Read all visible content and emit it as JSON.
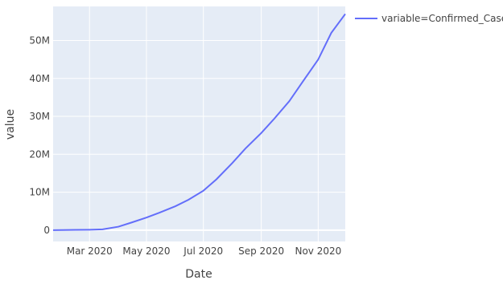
{
  "chart_data": {
    "type": "line",
    "xlabel": "Date",
    "ylabel": "value",
    "x_ticks": [
      "Mar 2020",
      "May 2020",
      "Jul 2020",
      "Sep 2020",
      "Nov 2020"
    ],
    "y_ticks": [
      "0",
      "10M",
      "20M",
      "30M",
      "40M",
      "50M"
    ],
    "ylim": [
      -3000000,
      59000000
    ],
    "xlim": [
      "2020-01-22",
      "2020-11-30"
    ],
    "grid": true,
    "plot_bgcolor": "#e5ecf6",
    "legend": {
      "placement": "top-right",
      "entries": [
        "variable=Confirmed_Cases"
      ]
    },
    "series": [
      {
        "name": "variable=Confirmed_Cases",
        "color": "#636efa",
        "x": [
          "2020-01-22",
          "2020-02-15",
          "2020-03-01",
          "2020-03-15",
          "2020-04-01",
          "2020-04-15",
          "2020-05-01",
          "2020-05-15",
          "2020-06-01",
          "2020-06-15",
          "2020-07-01",
          "2020-07-15",
          "2020-08-01",
          "2020-08-15",
          "2020-09-01",
          "2020-09-15",
          "2020-10-01",
          "2020-10-15",
          "2020-11-01",
          "2020-11-15",
          "2020-11-30"
        ],
        "y": [
          0,
          70000,
          100000,
          200000,
          900000,
          2000000,
          3300000,
          4600000,
          6300000,
          8000000,
          10400000,
          13400000,
          17700000,
          21500000,
          25600000,
          29400000,
          34000000,
          39000000,
          45000000,
          52000000,
          57000000
        ]
      }
    ]
  }
}
